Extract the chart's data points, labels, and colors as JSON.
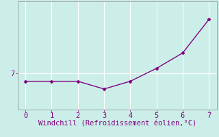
{
  "x": [
    0,
    1,
    2,
    3,
    4,
    5,
    6,
    7
  ],
  "y": [
    6.85,
    6.85,
    6.85,
    6.7,
    6.85,
    7.1,
    7.4,
    8.05
  ],
  "line_color": "#800080",
  "marker": "D",
  "marker_size": 2.5,
  "line_width": 1.0,
  "xlabel": "Windchill (Refroidissement éolien,°C)",
  "xlabel_color": "#800080",
  "xlim": [
    -0.3,
    7.3
  ],
  "ylim": [
    6.3,
    8.4
  ],
  "ytick_labels": [
    "7"
  ],
  "ytick_values": [
    7
  ],
  "xtick_values": [
    0,
    1,
    2,
    3,
    4,
    5,
    6,
    7
  ],
  "background_color": "#cceee8",
  "grid_color": "#ffffff",
  "tick_color": "#800080",
  "xlabel_fontsize": 7.5,
  "tick_fontsize": 7.5,
  "spine_color": "#888888"
}
